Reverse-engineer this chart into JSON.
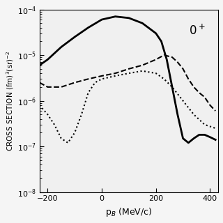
{
  "title_label": "0$^+$",
  "xlabel": "p$_B$ (MeV/c)",
  "ylabel": "CROSS SECTION (fm)$^3$(sr)$^{-2}$",
  "xlim": [
    -230,
    430
  ],
  "ylim_log": [
    -8,
    -4
  ],
  "xticks": [
    -200,
    0,
    200,
    400
  ],
  "yticks_log": [
    -8,
    -7,
    -6,
    -5,
    -4
  ],
  "background_color": "#f0f0f0",
  "solid_line": {
    "x": [
      -230,
      -200,
      -150,
      -100,
      -50,
      0,
      50,
      100,
      150,
      200,
      220,
      240,
      260,
      280,
      300,
      320,
      340,
      360,
      380,
      400,
      420
    ],
    "y": [
      6e-06,
      8e-06,
      1.5e-05,
      2.5e-05,
      4e-05,
      6e-05,
      7e-05,
      6.5e-05,
      5e-05,
      3e-05,
      2e-05,
      8e-06,
      2e-06,
      5e-07,
      1.5e-07,
      1.2e-07,
      1.5e-07,
      1.8e-07,
      1.8e-07,
      1.6e-07,
      1.4e-07
    ],
    "color": "#000000",
    "lw": 2.0,
    "ls": "-"
  },
  "dashed_line": {
    "x": [
      -230,
      -200,
      -150,
      -100,
      -50,
      0,
      50,
      100,
      150,
      200,
      230,
      260,
      280,
      300,
      320,
      340,
      360,
      380,
      400,
      420
    ],
    "y": [
      2.5e-06,
      2e-06,
      2e-06,
      2.5e-06,
      3e-06,
      3.5e-06,
      4e-06,
      5e-06,
      6e-06,
      8e-06,
      1e-05,
      9e-06,
      7e-06,
      5e-06,
      3e-06,
      2e-06,
      1.5e-06,
      1.2e-06,
      8e-07,
      6e-07
    ],
    "color": "#000000",
    "lw": 1.5,
    "ls": "--"
  },
  "dotted_line": {
    "x": [
      -230,
      -200,
      -175,
      -150,
      -125,
      -100,
      -75,
      -50,
      -25,
      0,
      50,
      100,
      150,
      200,
      230,
      260,
      300,
      340,
      380,
      420
    ],
    "y": [
      8e-07,
      5e-07,
      3e-07,
      1.5e-07,
      1.2e-07,
      2e-07,
      5e-07,
      1.5e-06,
      2.5e-06,
      3e-06,
      3.5e-06,
      4e-06,
      4.5e-06,
      4e-06,
      3e-06,
      2e-06,
      1e-06,
      5e-07,
      3e-07,
      2.5e-07
    ],
    "color": "#000000",
    "lw": 1.5,
    "ls": ":"
  }
}
